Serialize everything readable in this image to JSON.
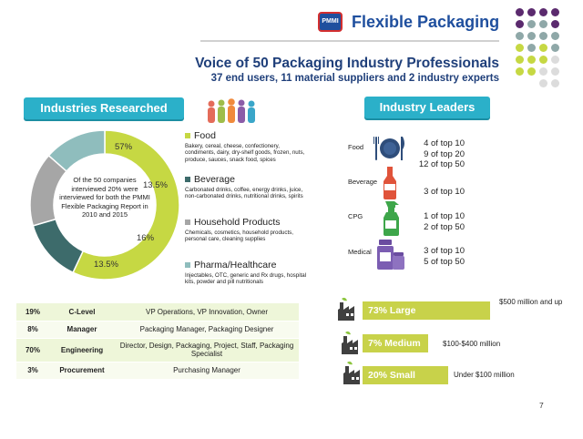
{
  "header": {
    "logo_text": "PMMI",
    "brand": "Flexible Packaging",
    "title": "Voice of 50 Packaging Industry Professionals",
    "subtitle": "37 end users, 11 material suppliers and 2 industry experts"
  },
  "left_banner": "Industries Researched",
  "right_banner": "Industry Leaders",
  "donut": {
    "center_text": "Of the 50 companies interviewed 20% were interviewed for both the PMMI Flexible Packaging Report in 2010 and 2015",
    "labels": [
      "57%",
      "13.5%",
      "16%",
      "13.5%"
    ]
  },
  "chart_data": {
    "type": "pie",
    "categories": [
      "Food",
      "Beverage",
      "Household Products",
      "Pharma/Healthcare"
    ],
    "values": [
      57,
      13.5,
      16,
      13.5
    ],
    "colors": [
      "#c6d843",
      "#3d6b6b",
      "#a6a6a6",
      "#8fbdbd"
    ]
  },
  "legend": [
    {
      "name": "Food",
      "desc": "Bakery, cereal, cheese, confectionery, condiments, dairy, dry-shelf goods, frozen, nuts, produce, sauces, snack food, spices"
    },
    {
      "name": "Beverage",
      "desc": "Carbonated drinks, coffee, energy drinks, juice, non-carbonated drinks, nutritional drinks, spirits"
    },
    {
      "name": "Household Products",
      "desc": "Chemicals, cosmetics, household products, personal care, cleaning supplies"
    },
    {
      "name": "Pharma/Healthcare",
      "desc": "Injectables, OTC, generic and Rx drugs, hospital kits, powder and pill nutritionals"
    }
  ],
  "roles": [
    {
      "pct": "19%",
      "role": "C-Level",
      "desc": "VP Operations, VP Innovation, Owner"
    },
    {
      "pct": "8%",
      "role": "Manager",
      "desc": "Packaging Manager, Packaging Designer"
    },
    {
      "pct": "70%",
      "role": "Engineering",
      "desc": "Director, Design, Packaging, Project, Staff, Packaging Specialist"
    },
    {
      "pct": "3%",
      "role": "Procurement",
      "desc": "Purchasing Manager"
    }
  ],
  "leaders": [
    {
      "cat": "Food",
      "icon": "plate-fork-knife-icon",
      "stats": [
        "4 of top 10",
        "9 of top 20",
        "12 of top 50"
      ]
    },
    {
      "cat": "Beverage",
      "icon": "bottle-icon",
      "stats": [
        "3 of top 10"
      ]
    },
    {
      "cat": "CPG",
      "icon": "spray-bottle-icon",
      "stats": [
        "1 of top 10",
        "2 of top 50"
      ]
    },
    {
      "cat": "Medical",
      "icon": "pill-bottles-icon",
      "stats": [
        "3 of top 10",
        "5 of top 50"
      ]
    }
  ],
  "sizes": [
    {
      "label": "73% Large",
      "note": "$500 million and up",
      "share": 73
    },
    {
      "label": "7% Medium",
      "note": "$100-$400 million",
      "share": 7
    },
    {
      "label": "20% Small",
      "note": "Under $100 million",
      "share": 20
    }
  ],
  "page_number": "7"
}
